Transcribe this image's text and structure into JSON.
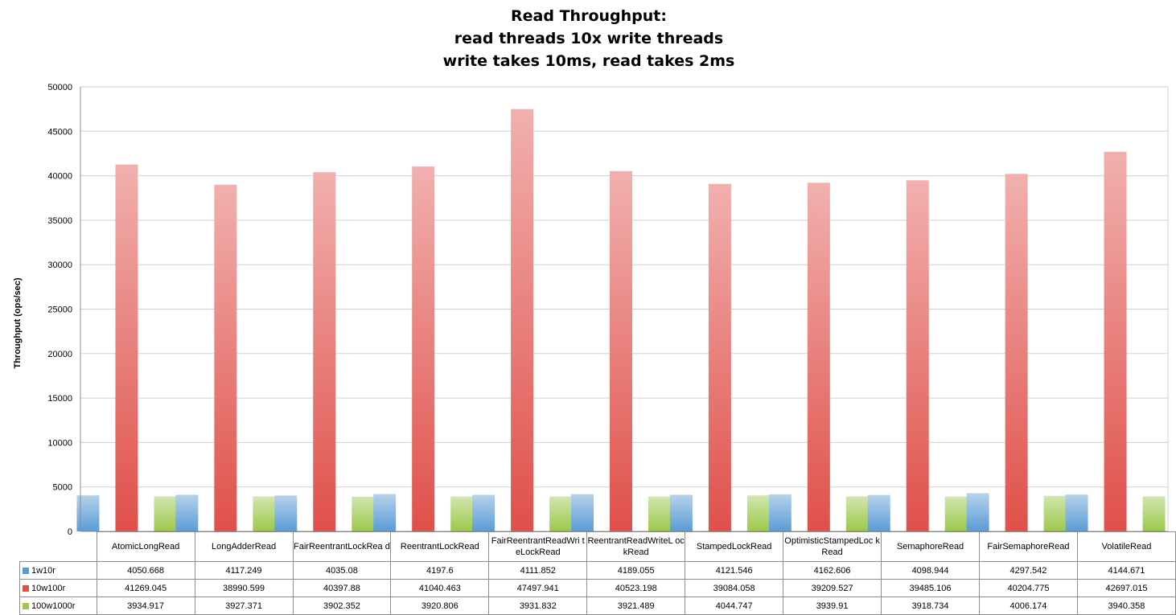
{
  "chart_data": {
    "type": "bar",
    "title_lines": [
      "Read Throughput:",
      "read threads 10x write threads",
      "write takes 10ms, read takes 2ms"
    ],
    "ylabel": "Throughput (ops/sec)",
    "xlabel": "",
    "ylim": [
      0,
      50000
    ],
    "yticks": [
      0,
      5000,
      10000,
      15000,
      20000,
      25000,
      30000,
      35000,
      40000,
      45000,
      50000
    ],
    "grid": true,
    "legend": "data table row headers",
    "categories": [
      "AtomicLongRead",
      "LongAdderRead",
      "FairReentrantLockRead",
      "ReentrantLockRead",
      "FairReentrantReadWriteLockRead",
      "ReentrantReadWriteLockRead",
      "StampedLockRead",
      "OptimisticStampedLockRead",
      "SemaphoreRead",
      "FairSemaphoreRead",
      "VolatileRead"
    ],
    "category_display": [
      "AtomicLongRead",
      "LongAdderRead",
      "FairReentrantLockRea d",
      "ReentrantLockRead",
      "FairReentrantReadWri teLockRead",
      "ReentrantReadWriteL ockRead",
      "StampedLockRead",
      "OptimisticStampedLoc kRead",
      "SemaphoreRead",
      "FairSemaphoreRead",
      "VolatileRead"
    ],
    "series": [
      {
        "name": "1w10r",
        "color": "#5b9bd5",
        "values": [
          4050.668,
          4117.249,
          4035.08,
          4197.6,
          4111.852,
          4189.055,
          4121.546,
          4162.606,
          4098.944,
          4297.542,
          4144.671
        ],
        "labels": [
          "4050.668",
          "4117.249",
          "4035.08",
          "4197.6",
          "4111.852",
          "4189.055",
          "4121.546",
          "4162.606",
          "4098.944",
          "4297.542",
          "4144.671"
        ]
      },
      {
        "name": "10w100r",
        "color": "#e0504a",
        "values": [
          41269.045,
          38990.599,
          40397.88,
          41040.463,
          47497.941,
          40523.198,
          39084.058,
          39209.527,
          39485.106,
          40204.775,
          42697.015
        ],
        "labels": [
          "41269.045",
          "38990.599",
          "40397.88",
          "41040.463",
          "47497.941",
          "40523.198",
          "39084.058",
          "39209.527",
          "39485.106",
          "40204.775",
          "42697.015"
        ]
      },
      {
        "name": "100w1000r",
        "color": "#9bc84a",
        "values": [
          3934.917,
          3927.371,
          3902.352,
          3920.806,
          3931.832,
          3921.489,
          4044.747,
          3939.91,
          3918.734,
          4006.174,
          3940.358
        ],
        "labels": [
          "3934.917",
          "3927.371",
          "3902.352",
          "3920.806",
          "3931.832",
          "3921.489",
          "4044.747",
          "3939.91",
          "3918.734",
          "4006.174",
          "3940.358"
        ]
      }
    ]
  }
}
